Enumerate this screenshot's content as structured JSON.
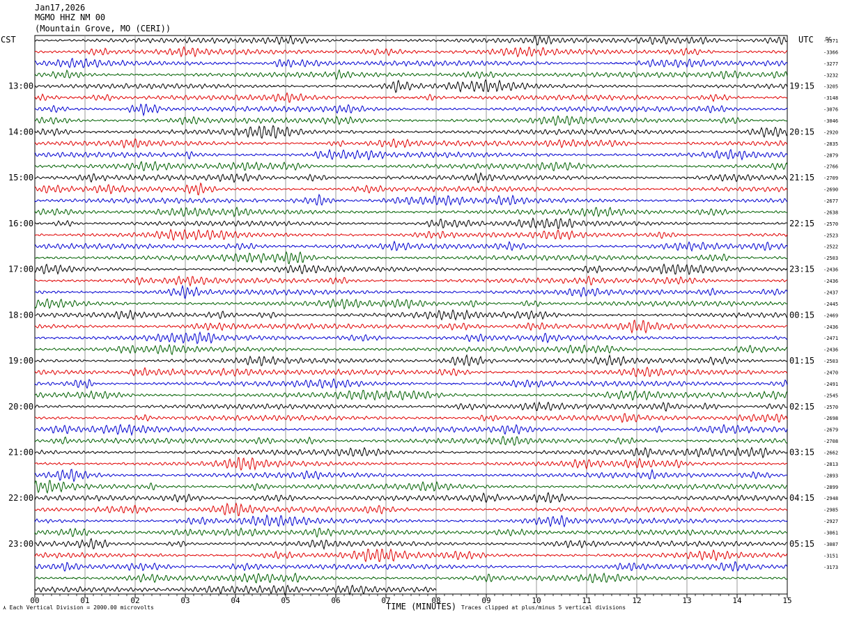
{
  "header": {
    "date": "Jan17,2026",
    "station": "MGMO HHZ NM 00",
    "location": "(Mountain Grove, MO (CERI))"
  },
  "left_axis_title": "CST",
  "right_axis_title": "UTC",
  "dc_label": "DC",
  "footer": {
    "scale_note": "Each Vertical Division = 2000.00 microvolts",
    "clip_note": "Traces clipped at plus/minus 5 vertical divisions",
    "scale_marker": "⋏"
  },
  "colors": {
    "trace_cycle": [
      "#000000",
      "#e00000",
      "#0000d0",
      "#006000"
    ],
    "grid": "#808080"
  },
  "chart_data": {
    "type": "line",
    "description_type": "helicorder",
    "xlabel": "TIME (MINUTES)",
    "x_ticks": [
      "00",
      "01",
      "02",
      "03",
      "04",
      "05",
      "06",
      "07",
      "08",
      "09",
      "10",
      "11",
      "12",
      "13",
      "14",
      "15"
    ],
    "xlim": [
      0,
      15
    ],
    "minutes_per_row": 15,
    "row_count": 49,
    "last_row_end_minute": 8,
    "hour_labels_left": [
      "13:00",
      "14:00",
      "15:00",
      "16:00",
      "17:00",
      "18:00",
      "19:00",
      "20:00",
      "21:00",
      "22:00",
      "23:00"
    ],
    "hour_labels_right": [
      "19:15",
      "20:15",
      "21:15",
      "22:15",
      "23:15",
      "00:15",
      "01:15",
      "02:15",
      "03:15",
      "04:15",
      "05:15"
    ],
    "first_labeled_row": 4,
    "dc_offsets": [
      -3371,
      -3366,
      -3277,
      -3232,
      -3205,
      -3148,
      -3076,
      -3046,
      -2920,
      -2835,
      -2879,
      -2766,
      -2709,
      -2690,
      -2677,
      -2638,
      -2570,
      -2523,
      -2522,
      -2503,
      -2436,
      -2436,
      -2437,
      -2445,
      -2469,
      -2436,
      -2471,
      -2436,
      -2503,
      -2470,
      -2491,
      -2545,
      -2570,
      -2698,
      -2679,
      -2708,
      -2662,
      -2813,
      -2893,
      -2899,
      -2948,
      -2985,
      -2927,
      -3061,
      -3087,
      -3151,
      -3173
    ]
  }
}
